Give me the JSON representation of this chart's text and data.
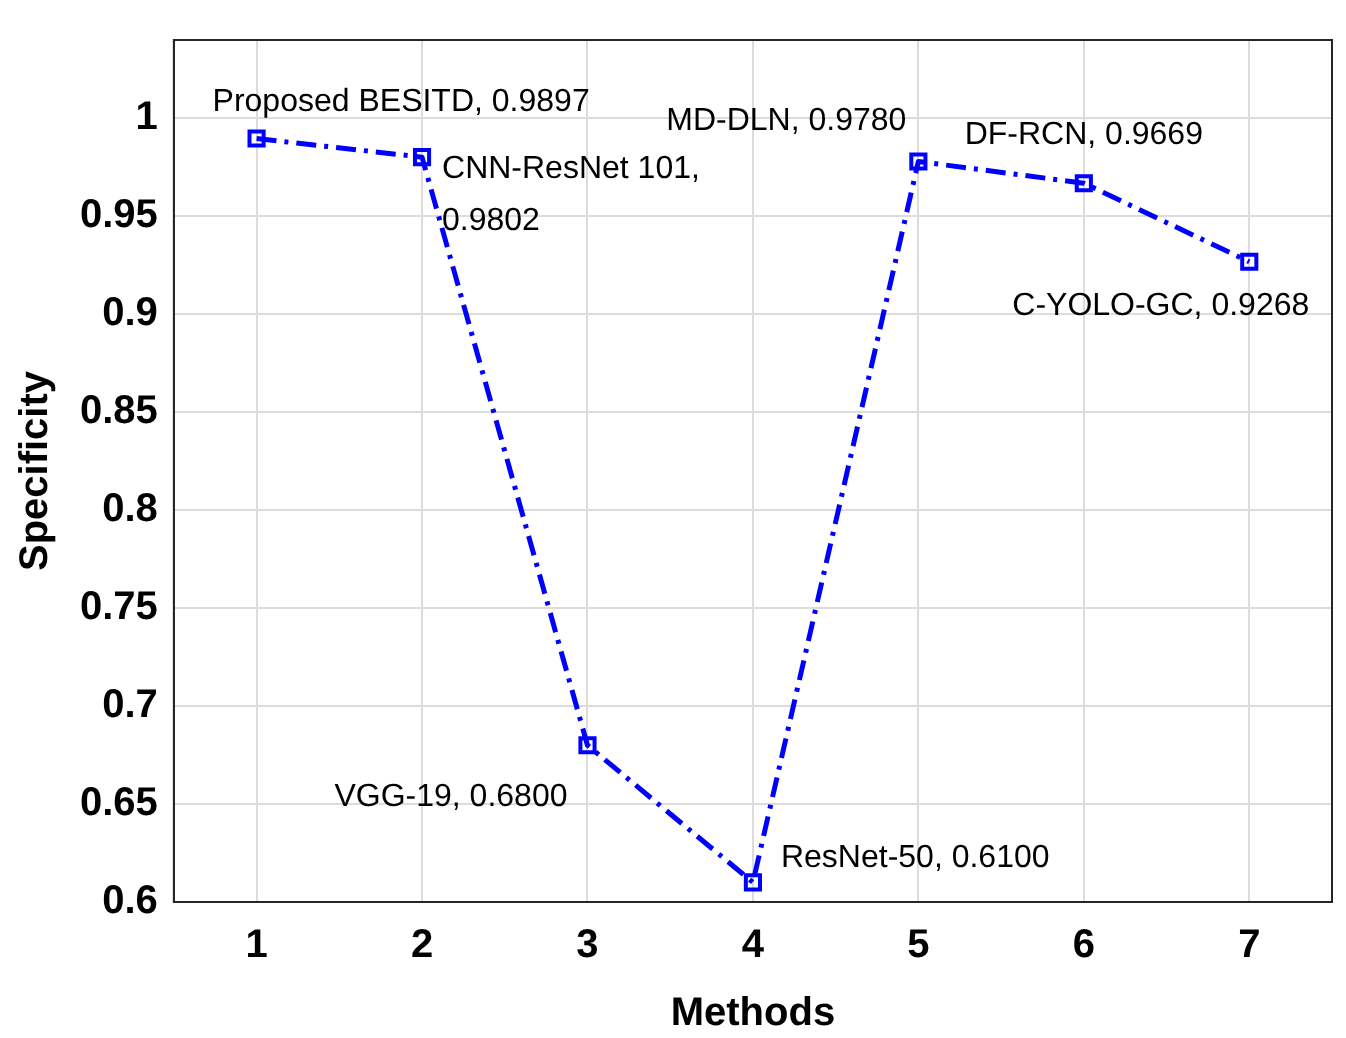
{
  "chart_data": {
    "type": "line",
    "xlabel": "Methods",
    "ylabel": "Specificity",
    "x": [
      1,
      2,
      3,
      4,
      5,
      6,
      7
    ],
    "series": [
      {
        "color": "#0000ff",
        "values": [
          0.9897,
          0.9802,
          0.68,
          0.61,
          0.978,
          0.9669,
          0.9268
        ]
      }
    ],
    "xlim": [
      0.5,
      7.5
    ],
    "xticks": [
      1,
      2,
      3,
      4,
      5,
      6,
      7
    ],
    "ylim": [
      0.6,
      1.04
    ],
    "yticks": [
      0.6,
      0.65,
      0.7,
      0.75,
      0.8,
      0.85,
      0.9,
      0.95,
      {
        "value": 1,
        "label": "1"
      }
    ],
    "grid": true,
    "marker": "square",
    "line_style": "dashed",
    "legend": false,
    "annotations": [
      {
        "text": "Proposed BESITD, 0.9897",
        "x": 1,
        "y": 0.9897
      },
      {
        "text": "CNN-ResNet 101,\n0.9802",
        "x": 2,
        "y": 0.9802
      },
      {
        "text": "VGG-19, 0.6800",
        "x": 3,
        "y": 0.68
      },
      {
        "text": "ResNet-50, 0.6100",
        "x": 4,
        "y": 0.61
      },
      {
        "text": "MD-DLN, 0.9780",
        "x": 5,
        "y": 0.978
      },
      {
        "text": "DF-RCN, 0.9669",
        "x": 6,
        "y": 0.9669
      },
      {
        "text": "C-YOLO-GC, 0.9268",
        "x": 7,
        "y": 0.9268
      }
    ]
  }
}
